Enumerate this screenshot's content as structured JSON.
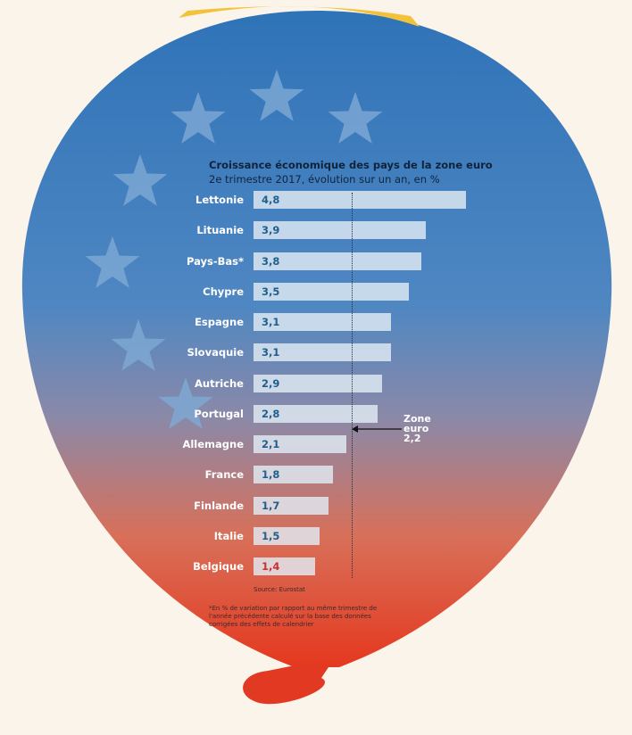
{
  "chart_data": {
    "type": "bar",
    "orientation": "horizontal",
    "title": "Croissance économique des pays de la zone euro",
    "subtitle": "2e trimestre 2017, évolution sur un an, en %",
    "categories": [
      "Lettonie",
      "Lituanie",
      "Pays-Bas*",
      "Chypre",
      "Espagne",
      "Slovaquie",
      "Autriche",
      "Portugal",
      "Allemagne",
      "France",
      "Finlande",
      "Italie",
      "Belgique"
    ],
    "values": [
      4.8,
      3.9,
      3.8,
      3.5,
      3.1,
      3.1,
      2.9,
      2.8,
      2.1,
      1.8,
      1.7,
      1.5,
      1.4
    ],
    "value_labels": [
      "4,8",
      "3,9",
      "3,8",
      "3,5",
      "3,1",
      "3,1",
      "2,9",
      "2,8",
      "2,1",
      "1,8",
      "1,7",
      "1,5",
      "1,4"
    ],
    "reference": {
      "label_lines": [
        "Zone",
        "euro",
        "2,2"
      ],
      "value": 2.2
    },
    "xlim": [
      0,
      4.8
    ],
    "source": "Source: Eurostat",
    "footnote": "*En % de variation par rapport au même trimestre de l'année précédente calculé sur la base des données corrigées des effets de calendrier",
    "colors": {
      "bar": "#e1ecf4",
      "value": "#1f5f8e",
      "highlight": "#c8302d",
      "balloon_top": "#3f7fc0",
      "balloon_bottom": "#e8452a"
    }
  }
}
